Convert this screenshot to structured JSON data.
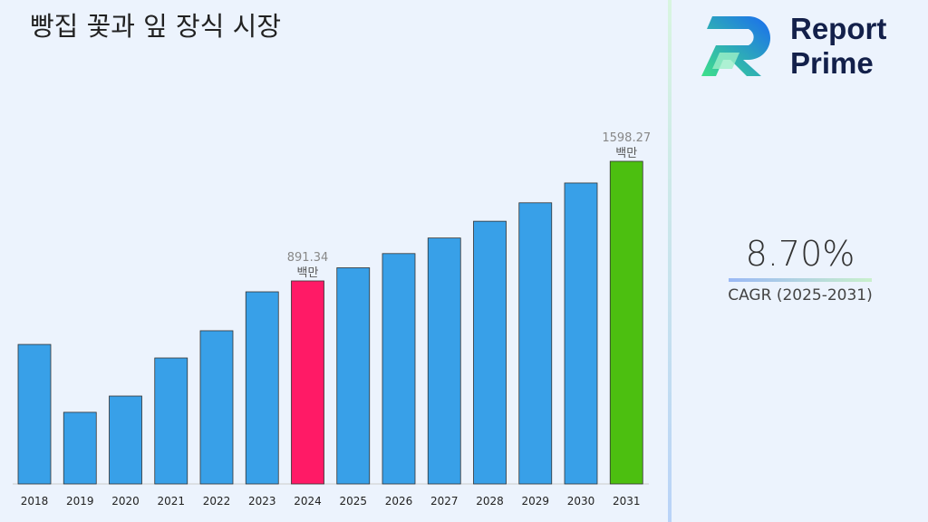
{
  "title": "빵집 꽃과 잎 장식 시장",
  "logo": {
    "line1": "Report",
    "line2": "Prime"
  },
  "cagr": {
    "value": "8.70%",
    "label": "CAGR (2025-2031)"
  },
  "colors": {
    "default_bar": "#38a0e8",
    "highlight_2024": "#ff1a66",
    "highlight_2031": "#4cbf10"
  },
  "chart_data": {
    "type": "bar",
    "title": "빵집 꽃과 잎 장식 시장",
    "categories": [
      "2018",
      "2019",
      "2020",
      "2021",
      "2022",
      "2023",
      "2024",
      "2025",
      "2026",
      "2027",
      "2028",
      "2029",
      "2030",
      "2031"
    ],
    "values": [
      516,
      115,
      211,
      436,
      597,
      827,
      891.34,
      969,
      1053,
      1145,
      1244,
      1353,
      1470,
      1598.27
    ],
    "data_labels": [
      {
        "category": "2024",
        "value": "891.34",
        "unit": "백만"
      },
      {
        "category": "2031",
        "value": "1598.27",
        "unit": "백만"
      }
    ],
    "grid": false,
    "legend": "none"
  }
}
